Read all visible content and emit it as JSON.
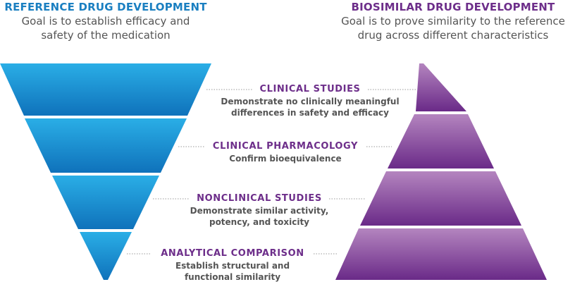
{
  "colors": {
    "reference": "#1a7fc1",
    "biosimilar": "#6d2e8a",
    "text": "#555555"
  },
  "reference": {
    "title": "REFERENCE DRUG DEVELOPMENT",
    "subtitle_line1": "Goal is to establish efficacy and",
    "subtitle_line2": "safety of the medication"
  },
  "biosimilar": {
    "title": "BIOSIMILAR DRUG DEVELOPMENT",
    "subtitle_line1": "Goal is to prove similarity to the reference",
    "subtitle_line2": "drug across different characteristics"
  },
  "stages": [
    {
      "title": "CLINICAL STUDIES",
      "desc_line1": "Demonstrate no clinically meaningful",
      "desc_line2": "differences in safety and efficacy"
    },
    {
      "title": "CLINICAL PHARMACOLOGY",
      "desc_line1": "Confirm bioequivalence",
      "desc_line2": ""
    },
    {
      "title": "NONCLINICAL STUDIES",
      "desc_line1": "Demonstrate similar activity,",
      "desc_line2": "potency, and toxicity"
    },
    {
      "title": "ANALYTICAL COMPARISON",
      "desc_line1": "Establish structural and",
      "desc_line2": "functional similarity"
    }
  ]
}
